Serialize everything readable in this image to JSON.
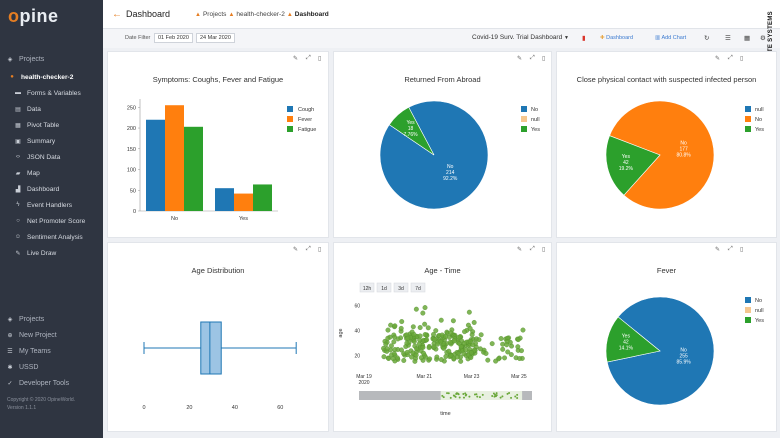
{
  "sidebar": {
    "logo": "opine",
    "projects_header": "Projects",
    "project_name": "health-checker-2",
    "items": [
      {
        "label": "Forms & Variables",
        "icon": "folder-icon"
      },
      {
        "label": "Data",
        "icon": "database-icon"
      },
      {
        "label": "Pivot Table",
        "icon": "table-icon"
      },
      {
        "label": "Summary",
        "icon": "summary-icon"
      },
      {
        "label": "JSON Data",
        "icon": "code-icon"
      },
      {
        "label": "Map",
        "icon": "map-icon"
      },
      {
        "label": "Dashboard",
        "icon": "chart-icon"
      },
      {
        "label": "Event Handlers",
        "icon": "bolt-icon"
      },
      {
        "label": "Net Promoter Score",
        "icon": "circle-icon"
      },
      {
        "label": "Sentiment Analysis",
        "icon": "smile-icon"
      },
      {
        "label": "Live Draw",
        "icon": "pen-icon"
      }
    ],
    "bottom_items": [
      {
        "label": "Projects",
        "icon": "projects-icon"
      },
      {
        "label": "New Project",
        "icon": "new-project-icon"
      },
      {
        "label": "My Teams",
        "icon": "team-icon"
      },
      {
        "label": "USSD",
        "icon": "ussd-icon"
      },
      {
        "label": "Developer Tools",
        "icon": "wrench-icon"
      }
    ],
    "copyright": "Copyright © 2020 OpineWorld.",
    "version": "Version 1.1.1"
  },
  "topbar": {
    "title": "Dashboard",
    "breadcrumb": [
      "Projects",
      "health-checker-2",
      "Dashboard"
    ]
  },
  "toolbar": {
    "date_filter_label": "Date Filter",
    "date_from": "01 Feb 2020",
    "date_to": "24 Mar 2020",
    "dashboard_select": "Covid-19 Surv. Trial Dashboard",
    "add_dashboard": "Dashboard",
    "add_chart": "Add Chart"
  },
  "watermark": "COURTESY KWABENA MUAMAH/COGNATE SYSTEMS",
  "colors": {
    "blue": "#1f77b4",
    "orange": "#ff7f0e",
    "green": "#2ca02c",
    "null": "#f5c78f",
    "sidebar": "#2f3541",
    "accent": "#e67e22"
  },
  "charts": {
    "symptoms": {
      "title": "Symptoms: Coughs, Fever and Fatigue",
      "chart_data": {
        "type": "bar",
        "categories": [
          "No",
          "Yes"
        ],
        "series": [
          {
            "name": "Cough",
            "values": [
              220,
              55
            ]
          },
          {
            "name": "Fever",
            "values": [
              255,
              42
            ]
          },
          {
            "name": "Fatigue",
            "values": [
              203,
              64
            ]
          }
        ],
        "yticks": [
          "0",
          "50",
          "100",
          "150",
          "200",
          "250"
        ],
        "ylim": [
          0,
          270
        ]
      }
    },
    "abroad": {
      "title": "Returned From Abroad",
      "chart_data": {
        "type": "pie",
        "slices": [
          {
            "label": "No",
            "value": 214,
            "pct": "92.2%"
          },
          {
            "label": "null",
            "value": 0,
            "pct": ""
          },
          {
            "label": "Yes",
            "value": 18,
            "pct": "7.76%"
          }
        ]
      }
    },
    "contact": {
      "title": "Close physical contact with suspected infected person",
      "chart_data": {
        "type": "pie",
        "slices": [
          {
            "label": "null",
            "value": 0,
            "pct": ""
          },
          {
            "label": "No",
            "value": 177,
            "pct": "80.8%"
          },
          {
            "label": "Yes",
            "value": 42,
            "pct": "19.2%"
          }
        ]
      }
    },
    "age": {
      "title": "Age Distribution",
      "chart_data": {
        "type": "box",
        "min": 0,
        "q1": 25,
        "median": 29,
        "q3": 34,
        "max": 67,
        "xticks": [
          "0",
          "20",
          "40",
          "60"
        ],
        "xlim": [
          0,
          70
        ]
      }
    },
    "agetime": {
      "title": "Age - Time",
      "range_buttons": [
        "12h",
        "1d",
        "3d",
        "7d"
      ],
      "xlabel": "time",
      "ylabel": "age",
      "xticks": [
        "Mar 19\n2020",
        "Mar 21",
        "Mar 23",
        "Mar 25"
      ],
      "yticks": [
        "20",
        "40",
        "60"
      ],
      "chart_data": {
        "type": "scatter",
        "x_range": [
          "2020-03-19",
          "2020-03-25"
        ],
        "y_range": [
          10,
          70
        ],
        "approx_points": 260
      }
    },
    "fever": {
      "title": "Fever",
      "chart_data": {
        "type": "pie",
        "slices": [
          {
            "label": "No",
            "value": 255,
            "pct": "85.9%"
          },
          {
            "label": "null",
            "value": 0,
            "pct": ""
          },
          {
            "label": "Yes",
            "value": 42,
            "pct": "14.1%"
          }
        ]
      }
    }
  }
}
